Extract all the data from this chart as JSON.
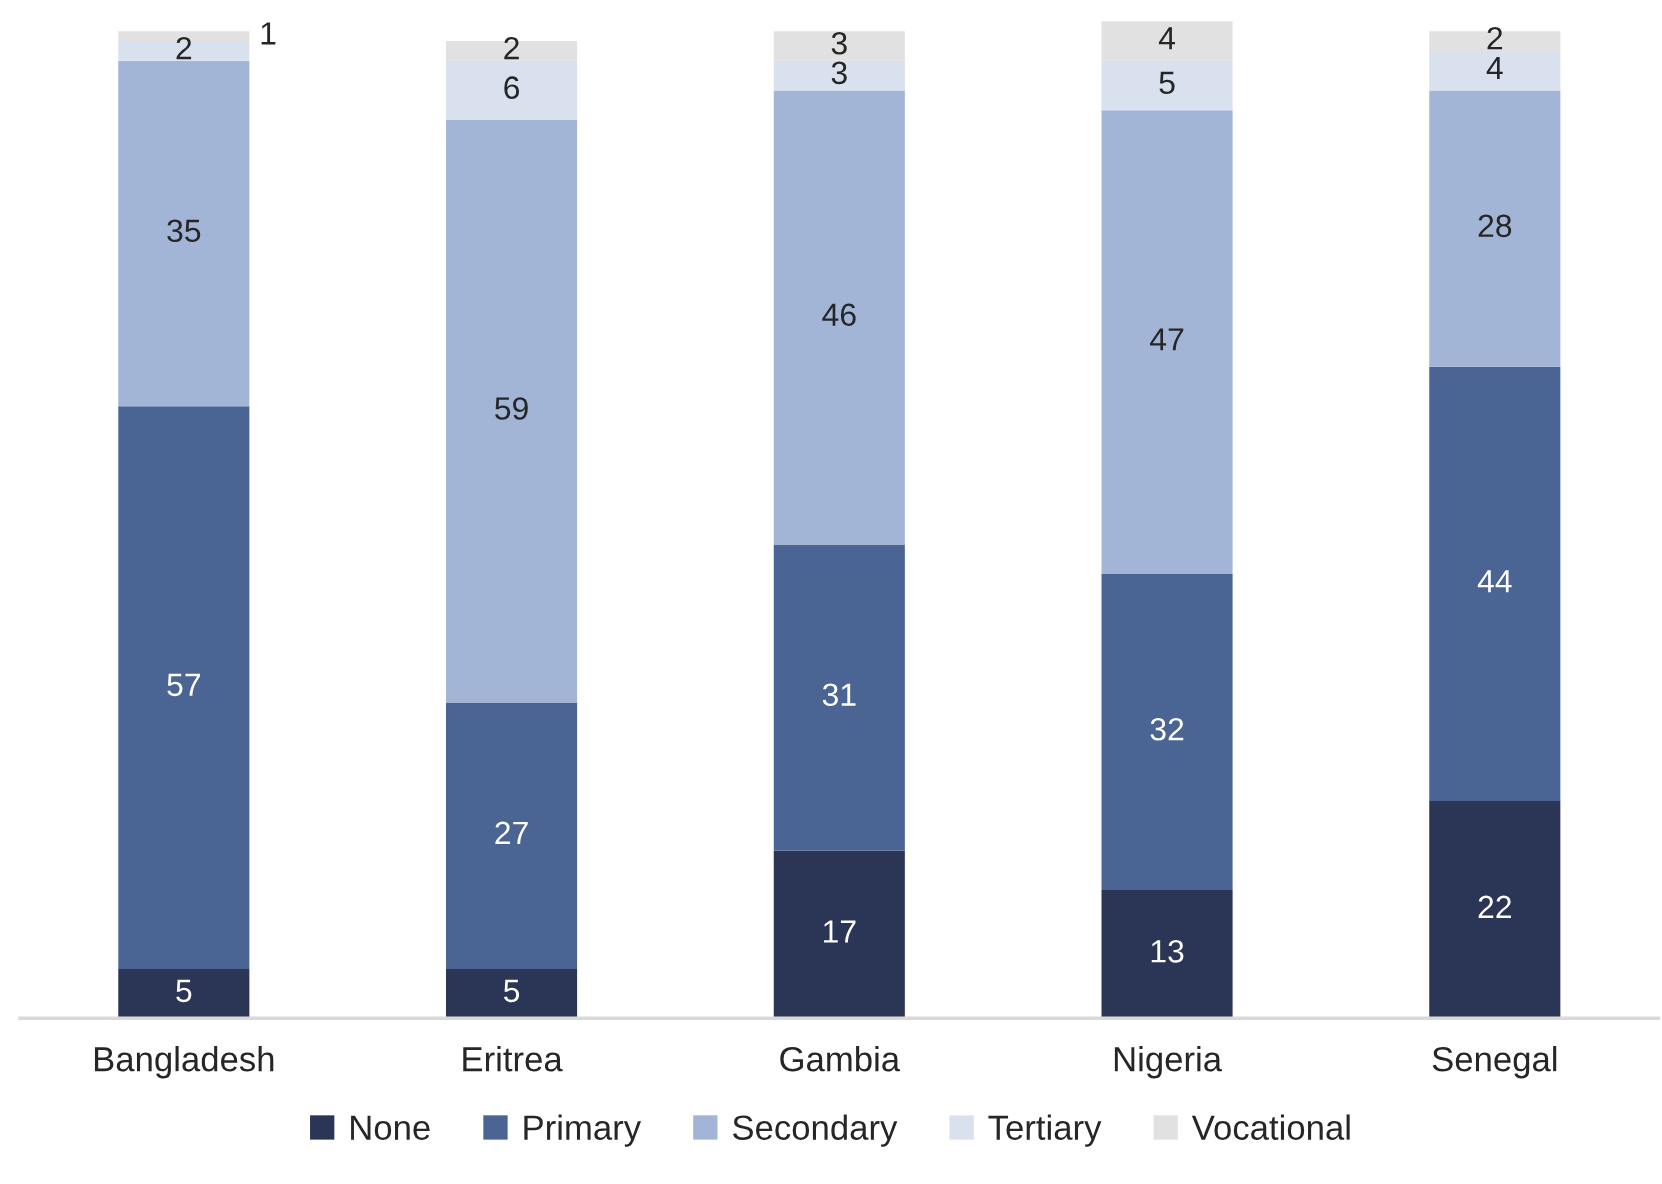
{
  "chart_data": {
    "type": "bar",
    "stacked": true,
    "categories": [
      "Bangladesh",
      "Eritrea",
      "Gambia",
      "Nigeria",
      "Senegal"
    ],
    "series": [
      {
        "name": "None",
        "color": "#2b3656",
        "values": [
          5,
          5,
          17,
          13,
          22
        ]
      },
      {
        "name": "Primary",
        "color": "#4a6593",
        "values": [
          57,
          27,
          31,
          32,
          44
        ]
      },
      {
        "name": "Secondary",
        "color": "#a2b5d7",
        "values": [
          35,
          59,
          46,
          47,
          28
        ]
      },
      {
        "name": "Tertiary",
        "color": "#d9e1ef",
        "values": [
          2,
          6,
          3,
          5,
          4
        ]
      },
      {
        "name": "Vocational",
        "color": "#e1e1e1",
        "values": [
          1,
          2,
          3,
          4,
          2
        ]
      }
    ],
    "data_labels": true,
    "legend": "bottom",
    "tick_labels": "x",
    "grid": false
  }
}
